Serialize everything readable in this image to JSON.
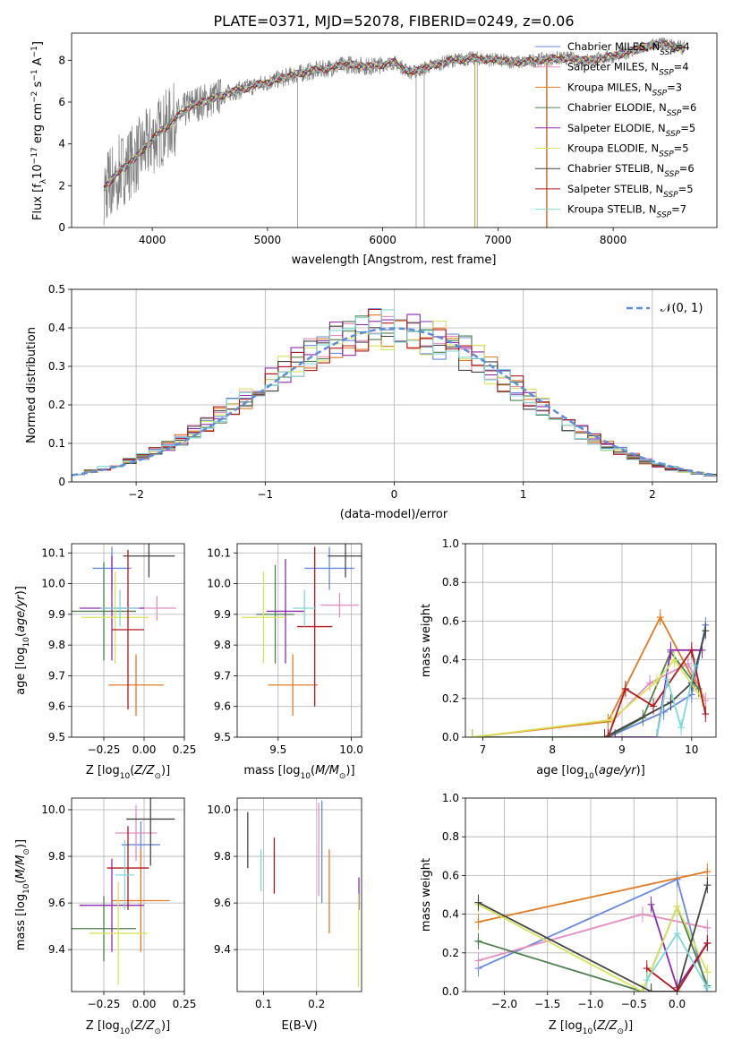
{
  "figure_title": "PLATE=0371, MJD=52078, FIBERID=0249, z=0.06",
  "series": [
    {
      "name": "Chabrier MILES",
      "nssp": "4",
      "color": "#6688dd"
    },
    {
      "name": "Salpeter MILES",
      "nssp": "4",
      "color": "#e38dc0"
    },
    {
      "name": "Kroupa MILES",
      "nssp": "3",
      "color": "#e07b24"
    },
    {
      "name": "Chabrier ELODIE",
      "nssp": "6",
      "color": "#4f7f4f"
    },
    {
      "name": "Salpeter ELODIE",
      "nssp": "5",
      "color": "#8d2bb0"
    },
    {
      "name": "Kroupa ELODIE",
      "nssp": "5",
      "color": "#d9e35a"
    },
    {
      "name": "Chabrier STELIB",
      "nssp": "6",
      "color": "#444444"
    },
    {
      "name": "Salpeter STELIB",
      "nssp": "5",
      "color": "#b2191e"
    },
    {
      "name": "Kroupa STELIB",
      "nssp": "7",
      "color": "#7fd8d8"
    }
  ],
  "chart_data": [
    {
      "id": "spectrum",
      "type": "line",
      "title": "PLATE=0371, MJD=52078, FIBERID=0249, z=0.06",
      "xlabel": "wavelength [Angstrom, rest frame]",
      "ylabel": "Flux [f_λ 10^-17 erg cm^-2 s^-1 A^-1]",
      "xlim": [
        3300,
        8900
      ],
      "ylim": [
        0,
        9.3
      ],
      "xticks": [
        4000,
        5000,
        6000,
        7000,
        8000
      ],
      "yticks": [
        0,
        2,
        4,
        6,
        8
      ],
      "grid": false,
      "legend": "right",
      "data_color": "#808080",
      "continuum": {
        "x": [
          3580,
          3700,
          3850,
          3950,
          4050,
          4200,
          4350,
          4500,
          4700,
          4900,
          5100,
          5300,
          5500,
          5700,
          5900,
          6100,
          6250,
          6400,
          6600,
          6800,
          7000,
          7200,
          7400,
          7600,
          7800,
          8000,
          8200,
          8400,
          8600
        ],
        "y": [
          1.9,
          2.6,
          3.3,
          3.9,
          4.5,
          5.2,
          5.9,
          6.1,
          6.5,
          6.8,
          7.1,
          7.4,
          7.6,
          7.8,
          7.7,
          7.9,
          7.4,
          7.7,
          8.0,
          8.1,
          8.0,
          7.9,
          8.05,
          8.1,
          8.0,
          8.2,
          8.5,
          8.8,
          8.6
        ]
      }
    },
    {
      "id": "residuals",
      "type": "histogram",
      "xlabel": "(data-model)/error",
      "ylabel": "Normed distribution",
      "xlim": [
        -2.5,
        2.5
      ],
      "ylim": [
        0,
        0.5
      ],
      "xticks": [
        -2,
        -1,
        0,
        1,
        2
      ],
      "yticks": [
        0.0,
        0.1,
        0.2,
        0.3,
        0.4,
        0.5
      ],
      "grid": true,
      "legend": "top-right",
      "reference_label": "𝒩(0, 1)",
      "reference_color": "#5b8dd9",
      "bin_width": 0.1,
      "bin_start": -2.5
    },
    {
      "id": "age-vs-Z",
      "type": "errorbar",
      "xlabel": "Z [log10(Z/Z⊙)]",
      "ylabel": "age [log10(age/yr)]",
      "xlim": [
        -0.45,
        0.25
      ],
      "ylim": [
        9.5,
        10.13
      ],
      "xticks": [
        -0.25,
        0.0,
        0.25
      ],
      "yticks": [
        9.5,
        9.6,
        9.7,
        9.8,
        9.9,
        10.0,
        10.1
      ],
      "grid": true,
      "points": [
        {
          "x": -0.2,
          "y": 10.05,
          "xerr": 0.12,
          "yerr": 0.07,
          "s": 0
        },
        {
          "x": 0.08,
          "y": 9.92,
          "xerr": 0.12,
          "yerr": 0.04,
          "s": 1
        },
        {
          "x": -0.05,
          "y": 9.67,
          "xerr": 0.17,
          "yerr": 0.1,
          "s": 2
        },
        {
          "x": -0.25,
          "y": 9.91,
          "xerr": 0.2,
          "yerr": 0.16,
          "s": 3
        },
        {
          "x": -0.2,
          "y": 9.92,
          "xerr": 0.2,
          "yerr": 0.17,
          "s": 4
        },
        {
          "x": -0.18,
          "y": 9.89,
          "xerr": 0.21,
          "yerr": 0.15,
          "s": 5
        },
        {
          "x": 0.03,
          "y": 10.09,
          "xerr": 0.16,
          "yerr": 0.07,
          "s": 6
        },
        {
          "x": -0.1,
          "y": 9.85,
          "xerr": 0.1,
          "yerr": 0.26,
          "s": 7
        },
        {
          "x": -0.15,
          "y": 9.92,
          "xerr": 0.12,
          "yerr": 0.06,
          "s": 8
        }
      ]
    },
    {
      "id": "age-vs-mass",
      "type": "errorbar",
      "xlabel": "mass [log10(M/M⊙)]",
      "ylabel": "",
      "xlim": [
        9.22,
        10.07
      ],
      "ylim": [
        9.5,
        10.13
      ],
      "xticks": [
        9.5,
        10.0
      ],
      "yticks": [
        9.5,
        9.6,
        9.7,
        9.8,
        9.9,
        10.0,
        10.1
      ],
      "grid": true,
      "points": [
        {
          "x": 9.85,
          "y": 10.05,
          "xerr": 0.17,
          "yerr": 0.07,
          "s": 0
        },
        {
          "x": 9.92,
          "y": 9.93,
          "xerr": 0.13,
          "yerr": 0.04,
          "s": 1
        },
        {
          "x": 9.6,
          "y": 9.67,
          "xerr": 0.17,
          "yerr": 0.1,
          "s": 2
        },
        {
          "x": 9.48,
          "y": 9.9,
          "xerr": 0.13,
          "yerr": 0.16,
          "s": 3
        },
        {
          "x": 9.55,
          "y": 9.91,
          "xerr": 0.13,
          "yerr": 0.17,
          "s": 4
        },
        {
          "x": 9.4,
          "y": 9.89,
          "xerr": 0.15,
          "yerr": 0.15,
          "s": 5
        },
        {
          "x": 9.96,
          "y": 10.09,
          "xerr": 0.12,
          "yerr": 0.07,
          "s": 6
        },
        {
          "x": 9.75,
          "y": 9.86,
          "xerr": 0.12,
          "yerr": 0.26,
          "s": 7
        },
        {
          "x": 9.68,
          "y": 9.92,
          "xerr": 0.08,
          "yerr": 0.06,
          "s": 8
        }
      ]
    },
    {
      "id": "weight-vs-age",
      "type": "line",
      "xlabel": "age [log10(age/yr)]",
      "ylabel": "mass weight",
      "xlim": [
        6.75,
        10.35
      ],
      "ylim": [
        0,
        1.0
      ],
      "xticks": [
        7,
        8,
        9,
        10
      ],
      "yticks": [
        0.0,
        0.2,
        0.4,
        0.6,
        0.8,
        1.0
      ],
      "grid": true,
      "lines": [
        {
          "s": 0,
          "x": [
            8.8,
            9.6,
            10.0,
            10.2
          ],
          "y": [
            0.0,
            0.13,
            0.22,
            0.58
          ]
        },
        {
          "s": 1,
          "x": [
            8.85,
            9.4,
            9.95,
            10.2
          ],
          "y": [
            0.08,
            0.28,
            0.38,
            0.19
          ]
        },
        {
          "s": 2,
          "x": [
            6.85,
            8.8,
            9.55,
            10.05
          ],
          "y": [
            0.0,
            0.08,
            0.62,
            0.28
          ]
        },
        {
          "s": 3,
          "x": [
            6.85,
            8.8,
            9.3,
            9.7,
            10.1
          ],
          "y": [
            0.0,
            0.0,
            0.1,
            0.44,
            0.25
          ]
        },
        {
          "s": 4,
          "x": [
            8.9,
            9.5,
            9.7,
            10.15
          ],
          "y": [
            0.0,
            0.0,
            0.45,
            0.45
          ]
        },
        {
          "s": 5,
          "x": [
            6.85,
            8.85,
            9.5,
            9.75,
            10.15
          ],
          "y": [
            0.0,
            0.09,
            0.29,
            0.4,
            0.2
          ]
        },
        {
          "s": 6,
          "x": [
            8.75,
            9.7,
            10.0,
            10.2
          ],
          "y": [
            0.0,
            0.18,
            0.28,
            0.55
          ]
        },
        {
          "s": 7,
          "x": [
            8.8,
            9.05,
            9.45,
            10.0,
            10.2
          ],
          "y": [
            0.0,
            0.25,
            0.16,
            0.45,
            0.12
          ]
        },
        {
          "s": 8,
          "x": [
            9.5,
            9.65,
            9.85,
            10.05
          ],
          "y": [
            0.0,
            0.3,
            0.05,
            0.37
          ]
        }
      ]
    },
    {
      "id": "mass-vs-Z",
      "type": "errorbar",
      "xlabel": "Z [log10(Z/Z⊙)]",
      "ylabel": "mass [log10(M/M⊙)]",
      "xlim": [
        -0.45,
        0.25
      ],
      "ylim": [
        9.22,
        10.05
      ],
      "xticks": [
        -0.25,
        0.0,
        0.25
      ],
      "yticks": [
        9.4,
        9.6,
        9.8,
        10.0
      ],
      "grid": true,
      "points": [
        {
          "x": -0.02,
          "y": 9.85,
          "xerr": 0.12,
          "yerr": 0.1,
          "s": 0
        },
        {
          "x": -0.05,
          "y": 9.9,
          "xerr": 0.13,
          "yerr": 0.12,
          "s": 1
        },
        {
          "x": -0.02,
          "y": 9.61,
          "xerr": 0.18,
          "yerr": 0.22,
          "s": 2
        },
        {
          "x": -0.25,
          "y": 9.49,
          "xerr": 0.2,
          "yerr": 0.14,
          "s": 3
        },
        {
          "x": -0.2,
          "y": 9.59,
          "xerr": 0.2,
          "yerr": 0.2,
          "s": 4
        },
        {
          "x": -0.16,
          "y": 9.47,
          "xerr": 0.18,
          "yerr": 0.22,
          "s": 5
        },
        {
          "x": 0.04,
          "y": 9.96,
          "xerr": 0.15,
          "yerr": 0.2,
          "s": 6
        },
        {
          "x": -0.1,
          "y": 9.75,
          "xerr": 0.13,
          "yerr": 0.18,
          "s": 7
        },
        {
          "x": -0.12,
          "y": 9.72,
          "xerr": 0.06,
          "yerr": 0.15,
          "s": 8
        }
      ]
    },
    {
      "id": "mass-vs-EBV",
      "type": "errorbar",
      "xlabel": "E(B-V)",
      "ylabel": "",
      "xlim": [
        0.05,
        0.285
      ],
      "ylim": [
        9.22,
        10.05
      ],
      "xticks": [
        0.1,
        0.2
      ],
      "yticks": [
        9.4,
        9.6,
        9.8,
        10.0
      ],
      "grid": true,
      "points": [
        {
          "x": 0.21,
          "y": 9.82,
          "xerr": 0,
          "yerr": 0.22,
          "s": 0
        },
        {
          "x": 0.204,
          "y": 9.83,
          "xerr": 0,
          "yerr": 0.2,
          "s": 1
        },
        {
          "x": 0.224,
          "y": 9.65,
          "xerr": 0,
          "yerr": 0.18,
          "s": 2
        },
        {
          "x": 0.28,
          "y": 9.64,
          "xerr": 0,
          "yerr": 0.07,
          "s": 4
        },
        {
          "x": 0.279,
          "y": 9.44,
          "xerr": 0,
          "yerr": 0.2,
          "s": 5
        },
        {
          "x": 0.07,
          "y": 9.87,
          "xerr": 0,
          "yerr": 0.12,
          "s": 6
        },
        {
          "x": 0.12,
          "y": 9.76,
          "xerr": 0,
          "yerr": 0.12,
          "s": 7
        },
        {
          "x": 0.095,
          "y": 9.74,
          "xerr": 0,
          "yerr": 0.09,
          "s": 8
        }
      ]
    },
    {
      "id": "weight-vs-Z",
      "type": "line",
      "xlabel": "Z [log10(Z/Z⊙)]",
      "ylabel": "mass weight",
      "xlim": [
        -2.45,
        0.45
      ],
      "ylim": [
        0,
        1.0
      ],
      "xticks": [
        -2.0,
        -1.5,
        -1.0,
        -0.5,
        0.0
      ],
      "yticks": [
        0.0,
        0.2,
        0.4,
        0.6,
        0.8,
        1.0
      ],
      "grid": true,
      "lines": [
        {
          "s": 0,
          "x": [
            -2.3,
            0.0,
            0.35
          ],
          "y": [
            0.12,
            0.58,
            0.0
          ]
        },
        {
          "s": 1,
          "x": [
            -2.3,
            -0.4,
            0.35
          ],
          "y": [
            0.16,
            0.4,
            0.33
          ]
        },
        {
          "s": 2,
          "x": [
            -2.3,
            0.35
          ],
          "y": [
            0.36,
            0.62
          ]
        },
        {
          "s": 3,
          "x": [
            -2.3,
            -2.3,
            -0.4,
            0.0,
            0.35
          ],
          "y": [
            0.26,
            0.26,
            0.0,
            0.44,
            0.03
          ]
        },
        {
          "s": 4,
          "x": [
            -0.3,
            0.0,
            0.35
          ],
          "y": [
            0.45,
            0.02,
            0.25
          ]
        },
        {
          "s": 5,
          "x": [
            -2.3,
            -0.4,
            0.0,
            0.35
          ],
          "y": [
            0.45,
            0.0,
            0.44,
            0.1
          ]
        },
        {
          "s": 6,
          "x": [
            -2.3,
            -0.3,
            0.0,
            0.35
          ],
          "y": [
            0.46,
            0.0,
            0.0,
            0.55
          ]
        },
        {
          "s": 7,
          "x": [
            -0.35,
            0.0,
            0.35
          ],
          "y": [
            0.12,
            0.0,
            0.25
          ]
        },
        {
          "s": 8,
          "x": [
            -0.35,
            0.0,
            0.35
          ],
          "y": [
            0.06,
            0.3,
            0.02
          ]
        }
      ]
    }
  ]
}
